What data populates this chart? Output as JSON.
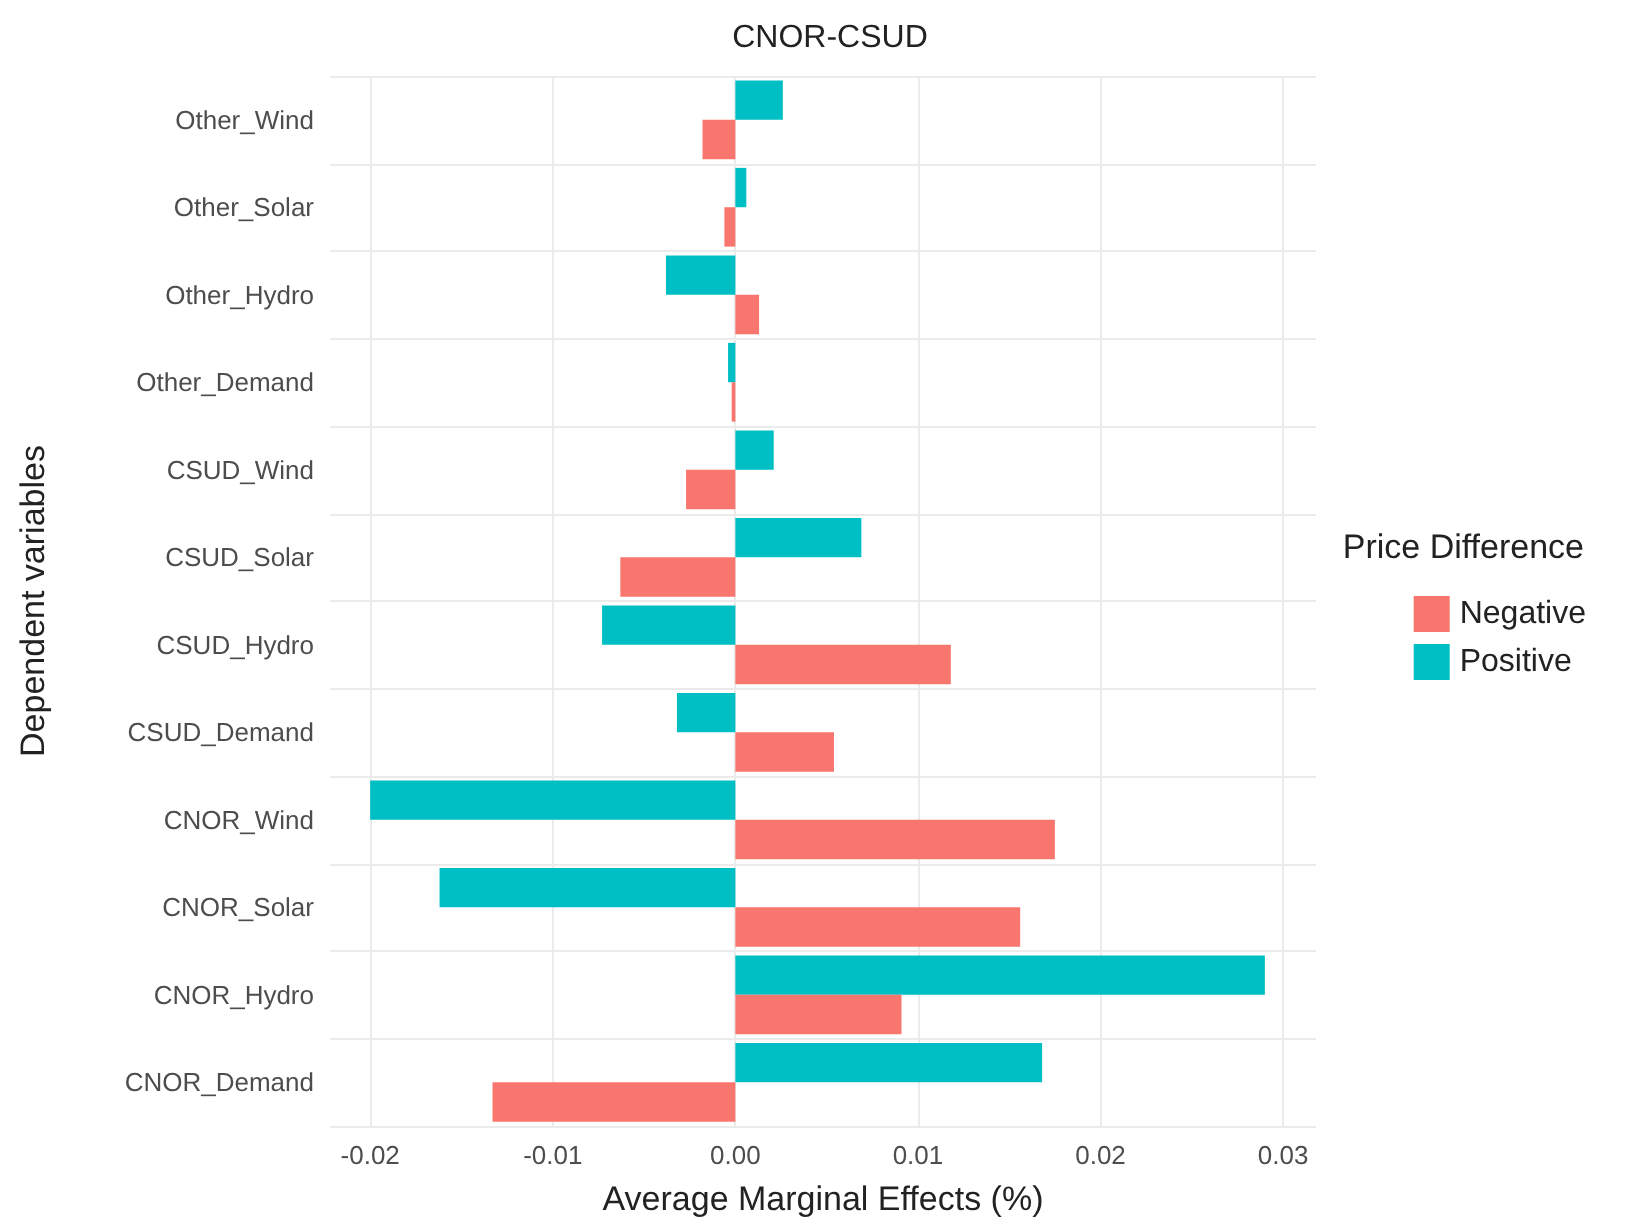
{
  "chart_data": {
    "type": "bar",
    "orientation": "horizontal",
    "title": "CNOR-CSUD",
    "xlabel": "Average Marginal Effects (%)",
    "ylabel": "Dependent variables",
    "legend_title": "Price Difference",
    "legend": "right",
    "grid": true,
    "categories": [
      "Other_Wind",
      "Other_Solar",
      "Other_Hydro",
      "Other_Demand",
      "CSUD_Wind",
      "CSUD_Solar",
      "CSUD_Hydro",
      "CSUD_Demand",
      "CNOR_Wind",
      "CNOR_Solar",
      "CNOR_Hydro",
      "CNOR_Demand"
    ],
    "xlim": [
      -0.0222,
      0.0318
    ],
    "xticks": [
      {
        "value": -0.02,
        "label": "-0.02"
      },
      {
        "value": -0.01,
        "label": "-0.01"
      },
      {
        "value": 0,
        "label": "0.00"
      },
      {
        "value": 0.01,
        "label": "0.01"
      },
      {
        "value": 0.02,
        "label": "0.02"
      },
      {
        "value": 0.03,
        "label": "0.03"
      }
    ],
    "series": [
      {
        "name": "Negative",
        "color": "#f8766d",
        "values": [
          -0.0018,
          -0.0006,
          0.0013,
          -0.0002,
          -0.0027,
          -0.0063,
          0.0118,
          0.0054,
          0.0175,
          0.0156,
          0.0091,
          -0.0133
        ]
      },
      {
        "name": "Positive",
        "color": "#00bfc4",
        "values": [
          0.0026,
          0.0006,
          -0.0038,
          -0.0004,
          0.0021,
          0.0069,
          -0.0073,
          -0.0032,
          -0.02,
          -0.0162,
          0.029,
          0.0168
        ]
      }
    ]
  }
}
